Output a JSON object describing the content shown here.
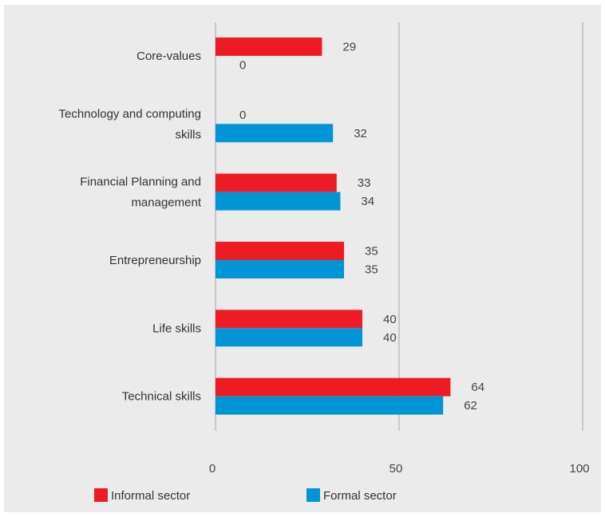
{
  "chart_data": {
    "type": "bar",
    "orientation": "horizontal",
    "categories": [
      [
        "Core-values"
      ],
      [
        "Technology and computing",
        "skills"
      ],
      [
        "Financial Planning and",
        "management"
      ],
      [
        "Entrepreneurship"
      ],
      [
        "Life skills"
      ],
      [
        "Technical skills"
      ]
    ],
    "series": [
      {
        "name": "Informal sector",
        "color": "#ed1c24",
        "values": [
          29,
          0,
          33,
          35,
          40,
          64
        ]
      },
      {
        "name": "Formal sector",
        "color": "#0096d6",
        "values": [
          0,
          32,
          34,
          35,
          40,
          62
        ]
      }
    ],
    "xlim": [
      0,
      100
    ],
    "xticks": [
      0,
      50,
      100
    ],
    "grid": true,
    "legend_position": "bottom"
  }
}
